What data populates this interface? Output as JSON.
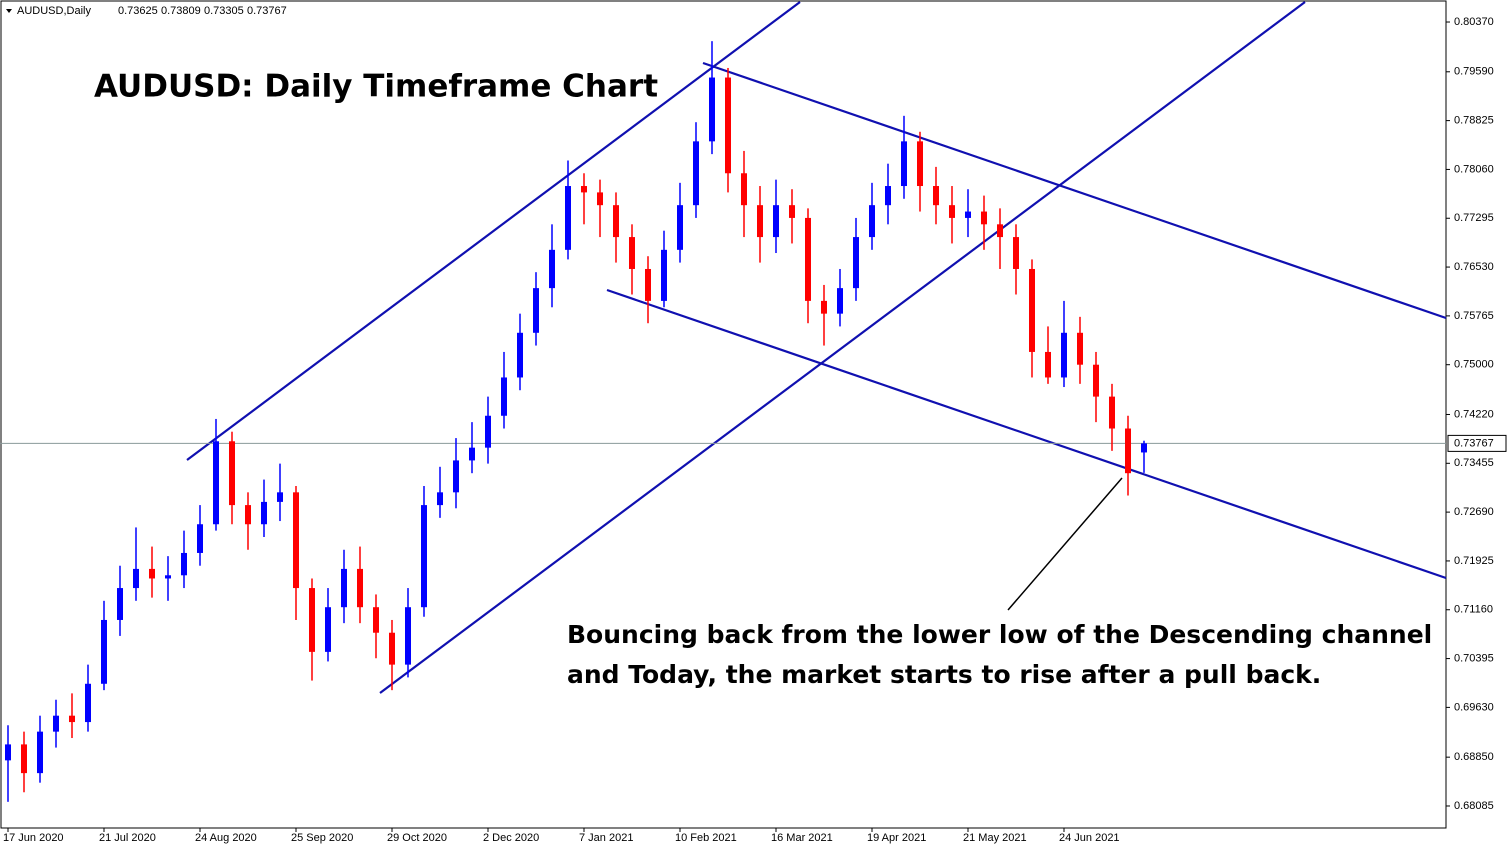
{
  "chart_data": {
    "type": "candlestick",
    "symbol": "AUDUSD,Daily",
    "title": "AUDUSD: Daily Timeframe Chart",
    "annotation": [
      "Bouncing back from the lower low of the Descending channel",
      "and Today, the market starts to rise after a pull back."
    ],
    "categories": [
      "17 Jun 2020",
      null,
      null,
      null,
      null,
      null,
      "21 Jul 2020",
      null,
      null,
      null,
      null,
      null,
      "24 Aug 2020",
      null,
      null,
      null,
      null,
      null,
      "25 Sep 2020",
      null,
      null,
      null,
      null,
      null,
      "29 Oct 2020",
      null,
      null,
      null,
      null,
      null,
      "2 Dec 2020",
      null,
      null,
      null,
      null,
      null,
      "7 Jan 2021",
      null,
      null,
      null,
      null,
      null,
      "10 Feb 2021",
      null,
      null,
      null,
      null,
      null,
      "16 Mar 2021",
      null,
      null,
      null,
      null,
      null,
      "19 Apr 2021",
      null,
      null,
      null,
      null,
      null,
      "21 May 2021",
      null,
      null,
      null,
      null,
      null,
      "24 Jun 2021",
      null,
      null,
      null,
      null,
      null
    ],
    "open": [
      0.688,
      0.6905,
      0.686,
      0.6925,
      0.695,
      0.694,
      0.7,
      0.71,
      0.715,
      0.718,
      0.7165,
      0.717,
      0.7205,
      0.725,
      0.738,
      0.728,
      0.725,
      0.7285,
      0.73,
      0.715,
      0.705,
      0.712,
      0.718,
      0.712,
      0.708,
      0.703,
      0.712,
      0.728,
      0.73,
      0.735,
      0.737,
      0.742,
      0.748,
      0.755,
      0.762,
      0.768,
      0.778,
      0.777,
      0.775,
      0.77,
      0.765,
      0.76,
      0.768,
      0.775,
      0.785,
      0.795,
      0.78,
      0.775,
      0.77,
      0.775,
      0.773,
      0.76,
      0.758,
      0.762,
      0.77,
      0.775,
      0.778,
      0.785,
      0.778,
      0.775,
      0.773,
      0.774,
      0.772,
      0.77,
      0.765,
      0.752,
      0.748,
      0.755,
      0.75,
      0.745,
      0.74,
      0.73625
    ],
    "high": [
      0.6935,
      0.6925,
      0.695,
      0.6975,
      0.6985,
      0.703,
      0.713,
      0.7185,
      0.7245,
      0.7215,
      0.72,
      0.724,
      0.728,
      0.7415,
      0.7395,
      0.73,
      0.732,
      0.7345,
      0.731,
      0.7165,
      0.715,
      0.721,
      0.7215,
      0.714,
      0.71,
      0.715,
      0.731,
      0.734,
      0.7385,
      0.741,
      0.745,
      0.752,
      0.758,
      0.7645,
      0.772,
      0.782,
      0.78,
      0.779,
      0.777,
      0.772,
      0.767,
      0.771,
      0.7785,
      0.788,
      0.8007,
      0.7965,
      0.7835,
      0.778,
      0.779,
      0.7775,
      0.7745,
      0.7625,
      0.765,
      0.773,
      0.7785,
      0.7815,
      0.789,
      0.7865,
      0.781,
      0.778,
      0.7775,
      0.7765,
      0.7745,
      0.772,
      0.7665,
      0.756,
      0.76,
      0.7575,
      0.752,
      0.747,
      0.742,
      0.73809
    ],
    "low": [
      0.6815,
      0.683,
      0.6845,
      0.69,
      0.6915,
      0.6925,
      0.699,
      0.7075,
      0.713,
      0.7135,
      0.713,
      0.715,
      0.7185,
      0.724,
      0.725,
      0.721,
      0.723,
      0.7255,
      0.71,
      0.7005,
      0.7035,
      0.7095,
      0.7095,
      0.704,
      0.699,
      0.701,
      0.7105,
      0.726,
      0.7275,
      0.733,
      0.7345,
      0.74,
      0.746,
      0.753,
      0.759,
      0.7665,
      0.772,
      0.77,
      0.766,
      0.761,
      0.7565,
      0.759,
      0.766,
      0.773,
      0.783,
      0.777,
      0.77,
      0.766,
      0.7675,
      0.769,
      0.7565,
      0.753,
      0.756,
      0.76,
      0.768,
      0.772,
      0.776,
      0.774,
      0.772,
      0.769,
      0.77,
      0.768,
      0.765,
      0.761,
      0.748,
      0.747,
      0.7465,
      0.747,
      0.741,
      0.7365,
      0.7295,
      0.73305
    ],
    "close": [
      0.6905,
      0.686,
      0.6925,
      0.695,
      0.694,
      0.7,
      0.71,
      0.715,
      0.718,
      0.7165,
      0.717,
      0.7205,
      0.725,
      0.738,
      0.728,
      0.725,
      0.7285,
      0.73,
      0.715,
      0.705,
      0.712,
      0.718,
      0.712,
      0.708,
      0.703,
      0.712,
      0.728,
      0.73,
      0.735,
      0.737,
      0.742,
      0.748,
      0.755,
      0.762,
      0.768,
      0.778,
      0.777,
      0.775,
      0.77,
      0.765,
      0.76,
      0.768,
      0.775,
      0.785,
      0.795,
      0.78,
      0.775,
      0.77,
      0.775,
      0.773,
      0.76,
      0.758,
      0.762,
      0.77,
      0.775,
      0.778,
      0.785,
      0.778,
      0.775,
      0.773,
      0.774,
      0.772,
      0.77,
      0.765,
      0.752,
      0.748,
      0.755,
      0.75,
      0.745,
      0.74,
      0.733,
      0.73767
    ],
    "up_color": "#0000ff",
    "down_color": "#ff0000",
    "ylim": [
      0.6774,
      0.80715
    ],
    "yticks": [
      {
        "value": 0.8037,
        "label": "0.80370"
      },
      {
        "value": 0.7959,
        "label": "0.79590"
      },
      {
        "value": 0.78825,
        "label": "0.78825"
      },
      {
        "value": 0.7806,
        "label": "0.78060"
      },
      {
        "value": 0.77295,
        "label": "0.77295"
      },
      {
        "value": 0.7653,
        "label": "0.76530"
      },
      {
        "value": 0.75765,
        "label": "0.75765"
      },
      {
        "value": 0.75,
        "label": "0.75000"
      },
      {
        "value": 0.7422,
        "label": "0.74220"
      },
      {
        "value": 0.73455,
        "label": "0.73455"
      },
      {
        "value": 0.7269,
        "label": "0.72690"
      },
      {
        "value": 0.71925,
        "label": "0.71925"
      },
      {
        "value": 0.7116,
        "label": "0.71160"
      },
      {
        "value": 0.70395,
        "label": "0.70395"
      },
      {
        "value": 0.6963,
        "label": "0.69630"
      },
      {
        "value": 0.6885,
        "label": "0.68850"
      },
      {
        "value": 0.68085,
        "label": "0.68085"
      }
    ]
  }
}
